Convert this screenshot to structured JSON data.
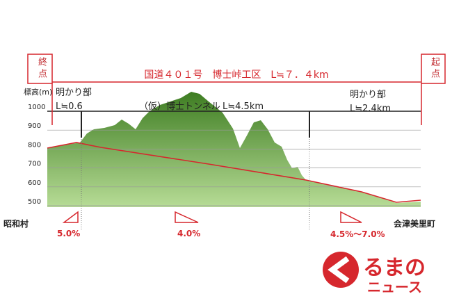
{
  "header": {
    "title": "国道４０１号　博士峠工区　L≒７．４km",
    "end_point": "終点",
    "start_point": "起点"
  },
  "axis": {
    "label": "標高(m)",
    "yticks": [
      1000,
      900,
      800,
      700,
      600,
      500
    ],
    "ylim": [
      500,
      1000
    ]
  },
  "sections": [
    {
      "name": "明かり部",
      "length": "L≒0.6"
    },
    {
      "name": "（仮）博士トンネル",
      "length": "L≒4.5km"
    },
    {
      "name": "明かり部",
      "length": "L≒2.4km"
    }
  ],
  "places": {
    "left": "昭和村",
    "right": "会津美里町"
  },
  "grades": [
    "5.0%",
    "4.0%",
    "4.5%～7.0%"
  ],
  "logo": {
    "main": "るまの",
    "sub": "ニュース"
  }
}
